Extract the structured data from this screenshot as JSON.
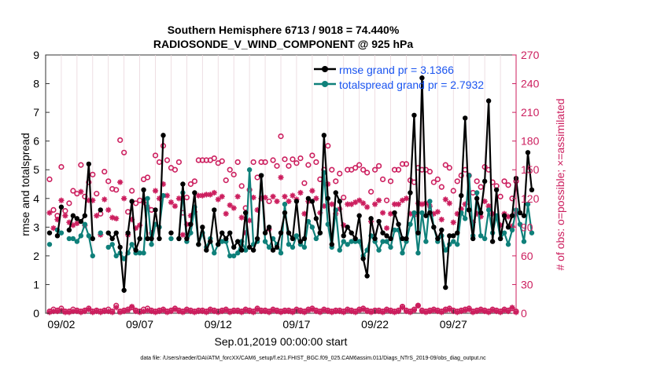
{
  "chart_data": {
    "type": "line",
    "title": "Southern Hemisphere 6713 / 9018 = 74.440%",
    "subtitle": "RADIOSONDE_V_WIND_COMPONENT @ 925 hPa",
    "xlabel": "Sep.01,2019 00:00:00 start",
    "ylabel_left": "rmse and totalspread",
    "ylabel_right": "# of obs: o=possible; ×=assimilated",
    "footnote": "data file: /Users/raeder/DAI/ATM_forcXX/CAM6_setup/f.e21.FHIST_BGC.f09_025.CAM6assim.011/Diags_NTrS_2019-09/obs_diag_output.nc",
    "x_ticks": [
      {
        "pos": 1.5,
        "label": "09/02"
      },
      {
        "pos": 6.5,
        "label": "09/07"
      },
      {
        "pos": 11.5,
        "label": "09/12"
      },
      {
        "pos": 16.5,
        "label": "09/17"
      },
      {
        "pos": 21.5,
        "label": "09/22"
      },
      {
        "pos": 26.5,
        "label": "09/27"
      }
    ],
    "x_range": [
      0.5,
      30.5
    ],
    "ylim_left": [
      0,
      9
    ],
    "yticks_left": [
      "0",
      "1",
      "2",
      "3",
      "4",
      "5",
      "6",
      "7",
      "8",
      "9"
    ],
    "ylim_right": [
      0,
      270
    ],
    "yticks_right": [
      "0",
      "30",
      "60",
      "90",
      "120",
      "150",
      "180",
      "210",
      "240",
      "270"
    ],
    "colors": {
      "rmse": "#000000",
      "spread": "#0f807a",
      "obs": "#cc1e5e",
      "legend_text": "#1a54f0"
    },
    "legend": [
      {
        "key": "rmse",
        "label": "rmse grand pr = 3.1366"
      },
      {
        "key": "spread",
        "label": "totalspread grand pr = 2.7932"
      }
    ],
    "series": [
      {
        "name": "rmse",
        "x0": 0.75,
        "dx": 0.25,
        "values": [
          2.8,
          null,
          2.7,
          3.7,
          null,
          2.9,
          3.4,
          3.3,
          3.2,
          3.4,
          5.2,
          2.6,
          null,
          3.6,
          null,
          2.8,
          2.6,
          2.8,
          2.3,
          0.8,
          2.8,
          3.9,
          2.2,
          2.6,
          4.3,
          2.6,
          2.6,
          3.6,
          2.6,
          6.2,
          null,
          2.8,
          null,
          2.6,
          4.5,
          2.6,
          3.1,
          4.2,
          2.4,
          3.0,
          2.2,
          2.5,
          3.6,
          2.4,
          2.8,
          2.6,
          2.8,
          2.3,
          2.5,
          2.2,
          3.5,
          2.3,
          2.2,
          2.6,
          4.8,
          2.8,
          3.0,
          2.2,
          2.3,
          2.8,
          3.5,
          2.8,
          2.6,
          3.9,
          2.5,
          2.6,
          4.0,
          3.9,
          3.3,
          2.8,
          6.2,
          4.0,
          2.4,
          4.2,
          3.9,
          2.7,
          3.0,
          2.8,
          2.6,
          3.4,
          1.9,
          1.3,
          3.3,
          2.6,
          3.2,
          2.8,
          2.7,
          2.6,
          3.5,
          3.1,
          2.6,
          2.6,
          4.2,
          6.9,
          2.8,
          8.2,
          3.4,
          3.5,
          3.0,
          2.6,
          2.9,
          0.9,
          2.7,
          2.7,
          2.8,
          4.1,
          6.8,
          3.6,
          2.6,
          4.0,
          3.5,
          4.6,
          7.4,
          2.5,
          4.3,
          2.6,
          3.4,
          3.0,
          3.4,
          4.7,
          3.5,
          3.4,
          5.6,
          4.3
        ]
      },
      {
        "name": "totalspread",
        "x0": 0.75,
        "dx": 0.25,
        "values": [
          2.4,
          null,
          2.9,
          2.8,
          null,
          2.6,
          2.6,
          2.5,
          2.7,
          3.1,
          2.7,
          2.0,
          null,
          2.8,
          null,
          2.3,
          2.4,
          2.0,
          2.1,
          1.9,
          2.1,
          2.4,
          2.1,
          2.1,
          2.1,
          4.0,
          2.4,
          3.1,
          3.0,
          4.1,
          null,
          2.6,
          null,
          2.6,
          4.2,
          2.5,
          2.8,
          3.7,
          2.4,
          2.8,
          2.3,
          2.6,
          2.1,
          2.4,
          2.5,
          2.5,
          2.0,
          2.0,
          2.1,
          2.5,
          2.2,
          5.0,
          2.4,
          2.5,
          4.8,
          2.5,
          2.3,
          2.6,
          2.4,
          2.1,
          3.8,
          2.4,
          2.3,
          2.7,
          2.4,
          2.3,
          3.2,
          3.0,
          2.6,
          2.8,
          4.9,
          3.1,
          2.3,
          3.6,
          2.2,
          2.5,
          2.4,
          2.5,
          2.5,
          2.5,
          2.0,
          2.2,
          2.7,
          2.5,
          2.2,
          2.5,
          2.5,
          2.3,
          2.9,
          2.9,
          2.1,
          2.5,
          3.1,
          3.5,
          2.1,
          3.5,
          2.5,
          3.9,
          3.0,
          2.5,
          2.7,
          2.2,
          2.4,
          2.5,
          2.4,
          3.5,
          3.3,
          4.8,
          2.7,
          4.2,
          2.7,
          2.6,
          3.6,
          2.8,
          3.4,
          2.6,
          2.8,
          2.4,
          2.9,
          3.6,
          3.1,
          2.5,
          3.8,
          2.8
        ]
      },
      {
        "name": "obs_possible",
        "x0": 0.75,
        "dx": 0.25,
        "values": [
          140,
          108,
          102,
          153,
          107,
          115,
          128,
          125,
          155,
          122,
          137,
          145,
          125,
          104,
          148,
          138,
          130,
          129,
          181,
          168,
          106,
          128,
          115,
          118,
          140,
          142,
          108,
          165,
          158,
          175,
          160,
          152,
          150,
          158,
          105,
          121,
          135,
          138,
          160,
          160,
          160,
          160,
          162,
          157,
          159,
          139,
          150,
          145,
          158,
          133,
          110,
          129,
          158,
          142,
          158,
          158,
          117,
          160,
          154,
          185,
          161,
          154,
          161,
          157,
          162,
          136,
          155,
          165,
          158,
          140,
          150,
          175,
          150,
          138,
          146,
          121,
          150,
          150,
          152,
          155,
          150,
          147,
          127,
          150,
          154,
          140,
          118,
          138,
          150,
          150,
          156,
          156,
          139,
          137,
          152,
          150,
          150,
          148,
          137,
          140,
          132,
          155,
          152,
          128,
          138,
          144,
          150,
          144,
          126,
          138,
          132,
          153,
          150,
          137,
          133,
          122,
          138,
          134,
          120,
          138
        ]
      },
      {
        "name": "obs_assimilated",
        "x0": 0.75,
        "dx": 0.25,
        "values": [
          105,
          89,
          98,
          118,
          102,
          95,
          92,
          94,
          127,
          92,
          118,
          118,
          102,
          82,
          119,
          108,
          100,
          99,
          137,
          120,
          82,
          98,
          89,
          92,
          116,
          111,
          84,
          128,
          120,
          135,
          123,
          116,
          112,
          120,
          82,
          93,
          102,
          106,
          123,
          123,
          124,
          124,
          126,
          119,
          122,
          104,
          113,
          110,
          122,
          100,
          84,
          97,
          121,
          108,
          120,
          121,
          88,
          122,
          117,
          142,
          122,
          117,
          123,
          119,
          126,
          104,
          117,
          128,
          120,
          105,
          112,
          135,
          114,
          104,
          109,
          92,
          114,
          114,
          116,
          118,
          115,
          111,
          96,
          114,
          118,
          105,
          89,
          104,
          114,
          114,
          118,
          120,
          104,
          103,
          115,
          114,
          115,
          112,
          104,
          106,
          98,
          119,
          115,
          95,
          104,
          109,
          114,
          108,
          95,
          104,
          101,
          117,
          112,
          104,
          100,
          92,
          104,
          101,
          91,
          104
        ]
      },
      {
        "name": "obs_bottom_possible",
        "x0": 0.75,
        "dx": 0.25,
        "values": [
          2,
          4,
          3,
          5,
          2,
          2,
          4,
          3,
          2,
          3,
          5,
          2,
          3,
          2,
          3,
          4,
          2,
          8,
          2,
          3,
          4,
          6,
          3,
          2,
          4,
          5,
          3,
          2,
          3,
          4,
          2,
          3,
          5,
          3,
          2,
          4,
          3,
          2,
          3,
          3,
          2,
          4,
          3,
          2,
          3,
          4,
          2,
          3,
          3,
          2,
          4,
          3,
          2,
          5,
          3,
          3,
          2,
          4,
          3,
          2,
          3,
          3,
          2,
          4,
          3,
          2,
          4,
          5,
          3,
          2,
          4,
          3,
          2,
          3,
          3,
          2,
          4,
          3,
          2,
          4,
          5,
          3,
          2,
          3,
          3,
          2,
          4,
          3,
          2,
          3,
          7,
          3,
          2,
          4,
          8,
          3,
          2,
          3,
          4,
          3,
          2,
          4,
          5,
          3,
          2,
          3,
          4,
          5,
          2,
          3,
          4,
          3,
          2,
          4,
          3,
          2,
          4,
          3,
          5,
          2
        ]
      },
      {
        "name": "obs_bottom_assimilated",
        "x0": 0.75,
        "dx": 0.25,
        "values": [
          1,
          2,
          2,
          3,
          1,
          1,
          2,
          2,
          1,
          2,
          4,
          1,
          2,
          1,
          2,
          2,
          1,
          6,
          1,
          2,
          3,
          7,
          2,
          1,
          2,
          3,
          2,
          1,
          2,
          3,
          1,
          2,
          4,
          2,
          1,
          3,
          2,
          1,
          2,
          2,
          1,
          3,
          2,
          1,
          2,
          3,
          1,
          2,
          2,
          1,
          3,
          2,
          1,
          4,
          2,
          2,
          1,
          3,
          2,
          1,
          2,
          2,
          1,
          3,
          2,
          1,
          3,
          4,
          2,
          1,
          3,
          2,
          1,
          2,
          2,
          1,
          3,
          2,
          1,
          3,
          4,
          2,
          1,
          2,
          2,
          1,
          3,
          2,
          1,
          2,
          6,
          2,
          1,
          3,
          8,
          2,
          1,
          2,
          3,
          2,
          1,
          3,
          4,
          2,
          1,
          2,
          3,
          4,
          1,
          2,
          3,
          2,
          1,
          3,
          2,
          1,
          3,
          2,
          6,
          1
        ]
      }
    ]
  }
}
